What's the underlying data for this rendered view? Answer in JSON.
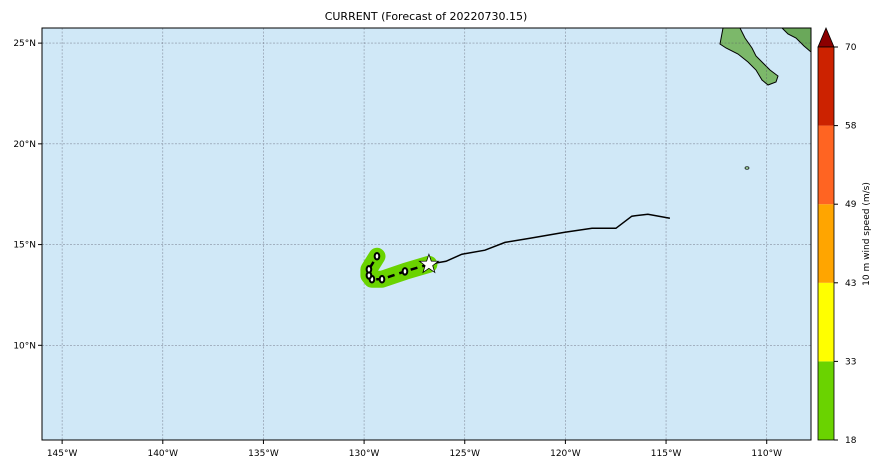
{
  "title": "CURRENT (Forecast of 20220730.15)",
  "map": {
    "lon_range": [
      -146.0,
      -107.8
    ],
    "lat_range": [
      5.3,
      25.75
    ],
    "ocean_color": "#d0e8f7",
    "land_color": "#6fae5a",
    "grid": true,
    "lon_ticks": [
      {
        "value": -145,
        "label": "145°W"
      },
      {
        "value": -140,
        "label": "140°W"
      },
      {
        "value": -135,
        "label": "135°W"
      },
      {
        "value": -130,
        "label": "130°W"
      },
      {
        "value": -125,
        "label": "125°W"
      },
      {
        "value": -120,
        "label": "120°W"
      },
      {
        "value": -115,
        "label": "115°W"
      },
      {
        "value": -110,
        "label": "110°W"
      }
    ],
    "lat_ticks": [
      {
        "value": 10,
        "label": "10°N"
      },
      {
        "value": 15,
        "label": "15°N"
      },
      {
        "value": 20,
        "label": "20°N"
      },
      {
        "value": 25,
        "label": "25°N"
      }
    ]
  },
  "past_track": [
    [
      -114.81,
      16.31
    ],
    [
      -115.9,
      16.51
    ],
    [
      -116.7,
      16.41
    ],
    [
      -117.49,
      15.81
    ],
    [
      -118.68,
      15.81
    ],
    [
      -120.03,
      15.61
    ],
    [
      -121.76,
      15.31
    ],
    [
      -123.0,
      15.11
    ],
    [
      -124.0,
      14.72
    ],
    [
      -125.14,
      14.52
    ],
    [
      -125.93,
      14.17
    ],
    [
      -126.78,
      14.02
    ]
  ],
  "current_position": [
    -126.78,
    14.02
  ],
  "forecast_track": [
    [
      -126.78,
      14.02
    ],
    [
      -127.97,
      13.67
    ],
    [
      -129.11,
      13.28
    ],
    [
      -129.61,
      13.28
    ],
    [
      -129.76,
      13.47
    ],
    [
      -129.76,
      13.77
    ],
    [
      -129.36,
      14.42
    ]
  ],
  "forecast_wind_color": "#6ad300",
  "colorbar": {
    "label": "10 m wind speed (m/s)",
    "levels": [
      18,
      33,
      43,
      49,
      58,
      70
    ],
    "colors": [
      "#6ad300",
      "#ffff00",
      "#ffa500",
      "#ff6422",
      "#cc2200"
    ],
    "extend_color": "#8b0000"
  }
}
